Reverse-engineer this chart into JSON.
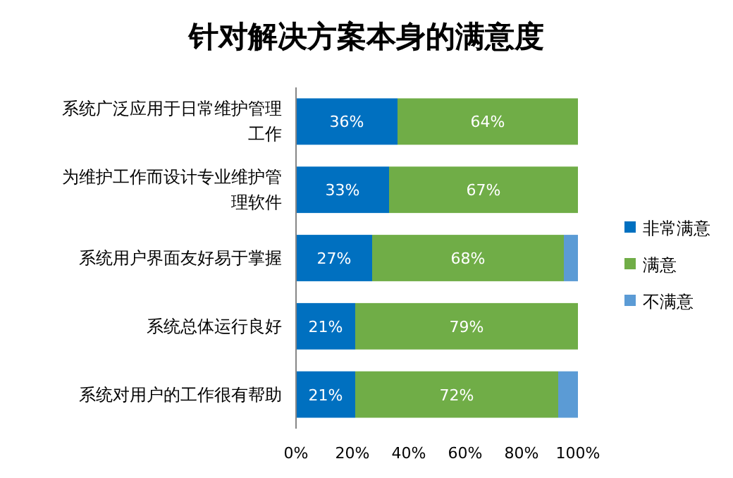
{
  "chart_data": {
    "type": "bar",
    "orientation": "horizontal",
    "stacked": true,
    "title": "针对解决方案本身的满意度",
    "categories": [
      "系统广泛应用于日常维护管理工作",
      "为维护工作而设计专业维护管理软件",
      "系统用户界面友好易于掌握",
      "系统总体运行良好",
      "系统对用户的工作很有帮助"
    ],
    "series": [
      {
        "name": "非常满意",
        "color": "#0070c0",
        "values": [
          36,
          33,
          27,
          21,
          21
        ],
        "value_labels": [
          "36%",
          "33%",
          "27%",
          "21%",
          "21%"
        ]
      },
      {
        "name": "满意",
        "color": "#70ad47",
        "values": [
          64,
          67,
          68,
          79,
          72
        ],
        "value_labels": [
          "64%",
          "67%",
          "68%",
          "79%",
          "72%"
        ]
      },
      {
        "name": "不满意",
        "color": "#5b9bd5",
        "values": [
          null,
          null,
          5,
          null,
          7
        ]
      }
    ],
    "xlim": [
      0,
      100
    ],
    "xticks": [
      {
        "value": 0,
        "label": "0%"
      },
      {
        "value": 20,
        "label": "20%"
      },
      {
        "value": 40,
        "label": "40%"
      },
      {
        "value": 60,
        "label": "60%"
      },
      {
        "value": 80,
        "label": "80%"
      },
      {
        "value": 100,
        "label": "100%"
      }
    ],
    "legend": "right",
    "grid": false
  }
}
